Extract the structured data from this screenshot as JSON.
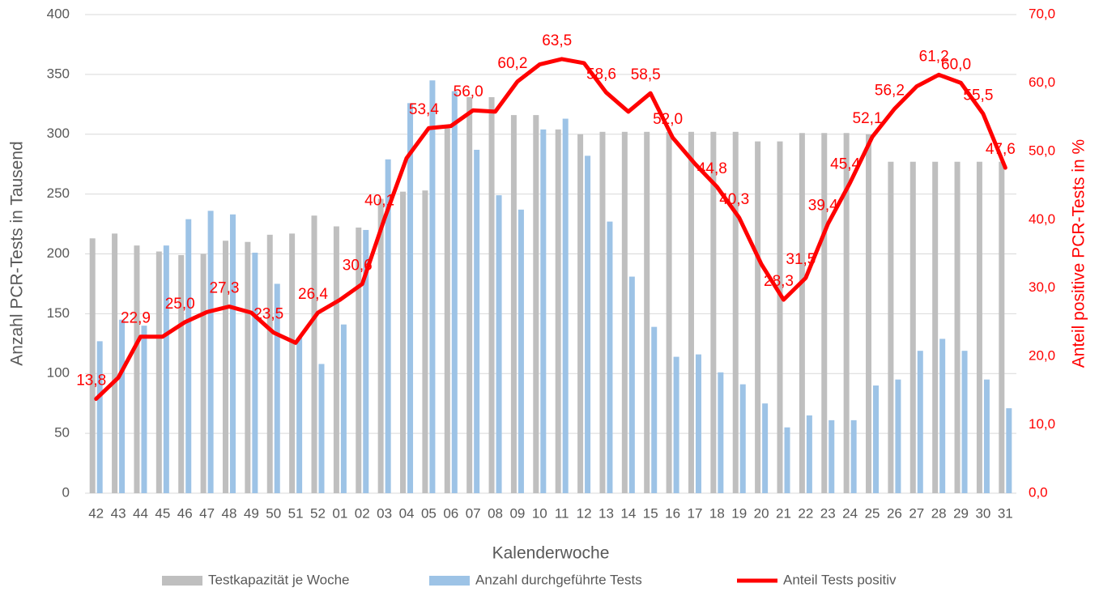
{
  "chart_data": {
    "type": "bar",
    "x_label": "Kalenderwoche",
    "y_label": "Anzahl PCR-Tests in Tausend",
    "y2_label": "Anteil positive  PCR-Tests in %",
    "categories": [
      "42",
      "43",
      "44",
      "45",
      "46",
      "47",
      "48",
      "49",
      "50",
      "51",
      "52",
      "01",
      "02",
      "03",
      "04",
      "05",
      "06",
      "07",
      "08",
      "09",
      "10",
      "11",
      "12",
      "13",
      "14",
      "15",
      "16",
      "17",
      "18",
      "19",
      "20",
      "21",
      "22",
      "23",
      "24",
      "25",
      "26",
      "27",
      "28",
      "29",
      "30",
      "31"
    ],
    "ylim": [
      0,
      400
    ],
    "yticks": [
      0,
      50,
      100,
      150,
      200,
      250,
      300,
      350,
      400
    ],
    "y2lim": [
      0,
      70
    ],
    "y2ticks": [
      {
        "value": 0,
        "label": "0,0"
      },
      {
        "value": 10,
        "label": "10,0"
      },
      {
        "value": 20,
        "label": "20,0"
      },
      {
        "value": 30,
        "label": "30,0"
      },
      {
        "value": 40,
        "label": "40,0"
      },
      {
        "value": 50,
        "label": "50,0"
      },
      {
        "value": 60,
        "label": "60,0"
      },
      {
        "value": 70,
        "label": "70,0"
      }
    ],
    "grid": true,
    "legend": "bottom",
    "series": [
      {
        "name": "Testkapazität je Woche",
        "type": "bar",
        "color": "#bfbfbf",
        "values": [
          213,
          217,
          207,
          202,
          199,
          200,
          211,
          210,
          216,
          217,
          232,
          223,
          222,
          246,
          252,
          253,
          305,
          331,
          331,
          316,
          316,
          304,
          300,
          302,
          302,
          302,
          302,
          302,
          302,
          302,
          294,
          294,
          301,
          301,
          301,
          300,
          277,
          277,
          277,
          277,
          277,
          277
        ]
      },
      {
        "name": "Anzahl durchgeführte Tests",
        "type": "bar",
        "color": "#9dc3e6",
        "values": [
          127,
          145,
          140,
          207,
          229,
          236,
          233,
          201,
          175,
          130,
          108,
          141,
          220,
          279,
          326,
          345,
          336,
          287,
          249,
          237,
          304,
          313,
          282,
          227,
          181,
          139,
          114,
          116,
          101,
          91,
          75,
          55,
          65,
          61,
          61,
          90,
          95,
          119,
          129,
          119,
          95,
          71
        ]
      },
      {
        "name": "Anteil Tests positiv",
        "type": "line",
        "axis": "y2",
        "color": "#ff0000",
        "values": [
          13.8,
          16.9,
          22.9,
          22.9,
          25.0,
          26.5,
          27.3,
          26.4,
          23.5,
          22.0,
          26.4,
          28.3,
          30.6,
          40.1,
          49.0,
          53.4,
          53.7,
          56.0,
          55.8,
          60.2,
          62.7,
          63.5,
          62.9,
          58.6,
          55.8,
          58.5,
          52.0,
          48.2,
          44.8,
          40.3,
          33.5,
          28.3,
          31.5,
          39.4,
          45.4,
          52.1,
          56.2,
          59.5,
          61.2,
          60.0,
          55.5,
          47.6
        ],
        "value_labels": [
          "13,8",
          null,
          "22,9",
          null,
          "25,0",
          null,
          "27,3",
          null,
          "23,5",
          null,
          "26,4",
          null,
          "30,6",
          "40,1",
          null,
          "53,4",
          null,
          "56,0",
          null,
          "60,2",
          null,
          "63,5",
          null,
          "58,6",
          null,
          "58,5",
          "52,0",
          null,
          "44,8",
          "40,3",
          null,
          "28,3",
          "31,5",
          "39,4",
          "45,4",
          "52,1",
          "56,2",
          null,
          "61,2",
          "60,0",
          "55,5",
          "47,6"
        ]
      }
    ]
  }
}
